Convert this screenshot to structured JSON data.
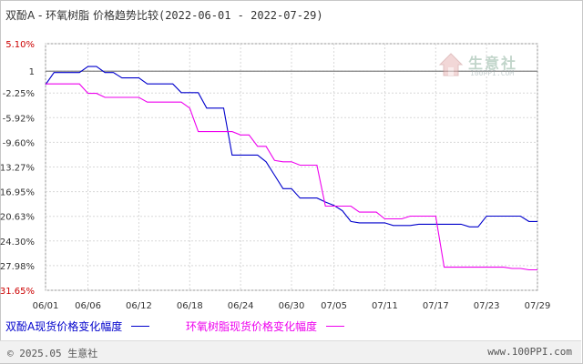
{
  "title": {
    "main": "双酚A - 环氧树脂 价格趋势比较",
    "range": "(2022-06-01 - 2022-07-29)"
  },
  "watermark": {
    "name": "生意社",
    "sub": "100PPI.COM"
  },
  "footer": {
    "copyright": "© 2025.05 生意社",
    "url": "www.100PPI.com"
  },
  "chart_data": {
    "type": "line",
    "y_ticks": [
      "5.10%",
      "1",
      "-2.25%",
      "-5.92%",
      "-9.60%",
      "-13.27%",
      "-16.95%",
      "-20.63%",
      "-24.30%",
      "-27.98%",
      "-31.65%"
    ],
    "y_tick_values": [
      5.1,
      1,
      -2.25,
      -5.92,
      -9.6,
      -13.27,
      -16.95,
      -20.63,
      -24.3,
      -27.98,
      -31.65
    ],
    "ylim": [
      -31.65,
      5.1
    ],
    "x_ticks": [
      "06/01",
      "06/06",
      "06/12",
      "06/18",
      "06/24",
      "06/30",
      "07/05",
      "07/11",
      "07/17",
      "07/23",
      "07/29"
    ],
    "x_tick_days": [
      0,
      5,
      11,
      17,
      23,
      29,
      34,
      40,
      46,
      52,
      58
    ],
    "x_days": [
      0,
      1,
      2,
      3,
      4,
      5,
      6,
      7,
      8,
      9,
      10,
      11,
      12,
      13,
      14,
      15,
      16,
      17,
      18,
      19,
      20,
      21,
      22,
      23,
      24,
      25,
      26,
      27,
      28,
      29,
      30,
      31,
      32,
      33,
      34,
      35,
      36,
      37,
      38,
      39,
      40,
      41,
      42,
      43,
      44,
      45,
      46,
      47,
      48,
      49,
      50,
      51,
      52,
      53,
      54,
      55,
      56,
      57,
      58
    ],
    "grid": true,
    "legend_position": "bottom",
    "baseline_value": 1,
    "series": [
      {
        "name": "双酚A现货价格变化幅度",
        "color": "#0000cc",
        "values": [
          -1.0,
          0.8,
          0.8,
          0.8,
          0.8,
          1.7,
          1.7,
          0.8,
          0.8,
          0.0,
          0.0,
          0.0,
          -0.9,
          -0.9,
          -0.9,
          -0.9,
          -2.2,
          -2.2,
          -2.2,
          -4.5,
          -4.5,
          -4.5,
          -11.5,
          -11.5,
          -11.5,
          -11.5,
          -12.5,
          -14.5,
          -16.5,
          -16.5,
          -17.9,
          -17.9,
          -17.9,
          -18.5,
          -19.0,
          -19.8,
          -21.4,
          -21.6,
          -21.6,
          -21.6,
          -21.6,
          -22.0,
          -22.0,
          -22.0,
          -21.8,
          -21.8,
          -21.8,
          -21.8,
          -21.8,
          -21.8,
          -22.2,
          -22.2,
          -20.6,
          -20.6,
          -20.6,
          -20.6,
          -20.6,
          -21.4,
          -21.4
        ]
      },
      {
        "name": "环氧树脂现货价格变化幅度",
        "color": "#ee00ee",
        "values": [
          -0.9,
          -0.9,
          -0.9,
          -0.9,
          -0.9,
          -2.3,
          -2.3,
          -2.9,
          -2.9,
          -2.9,
          -2.9,
          -2.9,
          -3.6,
          -3.6,
          -3.6,
          -3.6,
          -3.6,
          -4.5,
          -8.0,
          -8.0,
          -8.0,
          -8.0,
          -8.0,
          -8.5,
          -8.5,
          -10.2,
          -10.2,
          -12.3,
          -12.5,
          -12.5,
          -13.0,
          -13.0,
          -13.0,
          -19.1,
          -19.1,
          -19.1,
          -19.1,
          -20.0,
          -20.0,
          -20.0,
          -21.0,
          -21.0,
          -21.0,
          -20.6,
          -20.6,
          -20.6,
          -20.6,
          -28.2,
          -28.2,
          -28.2,
          -28.2,
          -28.2,
          -28.2,
          -28.2,
          -28.2,
          -28.4,
          -28.4,
          -28.6,
          -28.6
        ]
      }
    ]
  }
}
